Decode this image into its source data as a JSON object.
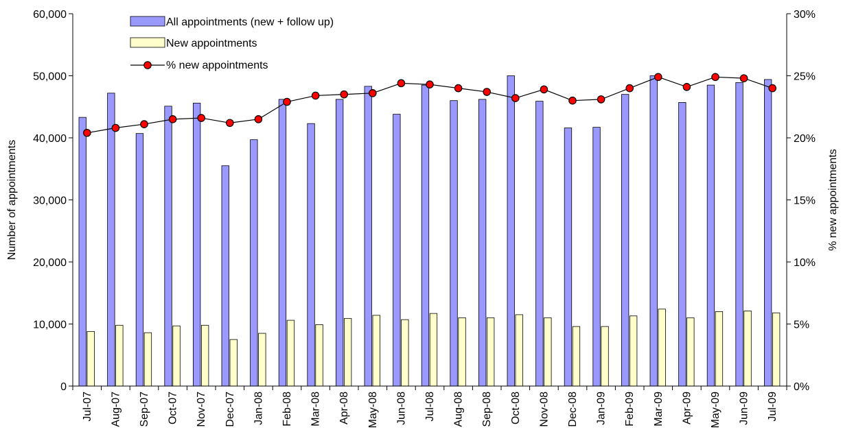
{
  "chart_data": {
    "type": "bar",
    "title": "",
    "xlabel": "",
    "ylabel": "Number of appointments",
    "y2label": "% new appointments",
    "ylim": [
      0,
      60000
    ],
    "y2lim": [
      0,
      0.3
    ],
    "yticks": [
      "0",
      "10,000",
      "20,000",
      "30,000",
      "40,000",
      "50,000",
      "60,000"
    ],
    "y2ticks": [
      "0%",
      "5%",
      "10%",
      "15%",
      "20%",
      "25%",
      "30%"
    ],
    "categories": [
      "Jul-07",
      "Aug-07",
      "Sep-07",
      "Oct-07",
      "Nov-07",
      "Dec-07",
      "Jan-08",
      "Feb-08",
      "Mar-08",
      "Apr-08",
      "May-08",
      "Jun-08",
      "Jul-08",
      "Aug-08",
      "Sep-08",
      "Oct-08",
      "Nov-08",
      "Dec-08",
      "Jan-09",
      "Feb-09",
      "Mar-09",
      "Apr-09",
      "May-09",
      "Jun-09",
      "Jul-09"
    ],
    "series": [
      {
        "name": "All appointments (new + follow up)",
        "kind": "bar",
        "axis": "left",
        "color": "#9999ff",
        "values": [
          43300,
          47200,
          40700,
          45100,
          45600,
          35500,
          39700,
          46200,
          42300,
          46200,
          48300,
          43800,
          48500,
          46000,
          46200,
          50000,
          45900,
          41600,
          41700,
          47000,
          50000,
          45700,
          48500,
          48900,
          49400
        ]
      },
      {
        "name": "New appointments",
        "kind": "bar",
        "axis": "left",
        "color": "#ffffcc",
        "values": [
          8800,
          9800,
          8600,
          9700,
          9800,
          7500,
          8500,
          10600,
          9900,
          10900,
          11400,
          10700,
          11700,
          11000,
          11000,
          11500,
          11000,
          9600,
          9600,
          11300,
          12400,
          11000,
          12000,
          12100,
          11800
        ]
      },
      {
        "name": "% new appointments",
        "kind": "line",
        "axis": "right",
        "color": "#000000",
        "marker_color": "#ff0000",
        "values": [
          0.204,
          0.208,
          0.211,
          0.215,
          0.216,
          0.212,
          0.215,
          0.229,
          0.234,
          0.235,
          0.236,
          0.244,
          0.243,
          0.24,
          0.237,
          0.232,
          0.239,
          0.23,
          0.231,
          0.24,
          0.249,
          0.241,
          0.249,
          0.248,
          0.24
        ]
      }
    ],
    "legend_position": "top-left"
  }
}
